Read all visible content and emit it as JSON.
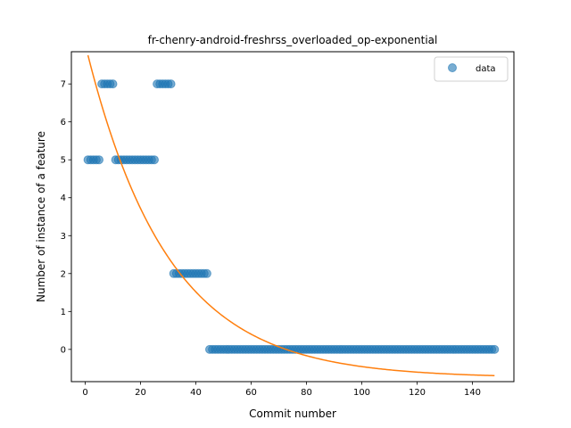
{
  "chart_data": {
    "type": "scatter",
    "title": "fr-chenry-android-freshrss_overloaded_op-exponential",
    "xlabel": "Commit number",
    "ylabel": "Number of instance of a feature",
    "xlim": [
      -5,
      155
    ],
    "ylim": [
      -0.85,
      7.85
    ],
    "xticks": [
      0,
      20,
      40,
      60,
      80,
      100,
      120,
      140
    ],
    "yticks": [
      0,
      1,
      2,
      3,
      4,
      5,
      6,
      7
    ],
    "grid": false,
    "legend": {
      "placement": "top-right",
      "entries": [
        "data"
      ]
    },
    "colors": {
      "data": "#1f77b4",
      "fit": "#ff7f0e"
    },
    "series": [
      {
        "name": "data",
        "kind": "scatter",
        "segments": [
          {
            "x_from": 1,
            "x_to": 5,
            "y": 5
          },
          {
            "x_from": 6,
            "x_to": 10,
            "y": 7
          },
          {
            "x_from": 11,
            "x_to": 25,
            "y": 5
          },
          {
            "x_from": 26,
            "x_to": 31,
            "y": 7
          },
          {
            "x_from": 32,
            "x_to": 44,
            "y": 2
          },
          {
            "x_from": 45,
            "x_to": 148,
            "y": 0
          }
        ]
      },
      {
        "kind": "line",
        "x_range": [
          1,
          148
        ],
        "fit": {
          "model": "exponential",
          "a": 8.8,
          "b": 0.0339,
          "c": -0.75
        }
      }
    ]
  }
}
